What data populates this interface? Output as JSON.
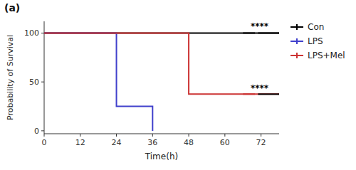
{
  "chart_data": {
    "type": "line",
    "title": "(a)",
    "x_label": "Time(h)",
    "y_label": "Probability of Survival",
    "xlim": [
      0,
      78
    ],
    "ylim": [
      -3,
      112
    ],
    "xticks": [
      0,
      12,
      24,
      36,
      48,
      60,
      72
    ],
    "yticks": [
      0,
      50,
      100
    ],
    "grid": false,
    "legend": "right",
    "series": [
      {
        "name": "Con",
        "color": "#000000",
        "x": [
          0,
          78
        ],
        "values": [
          100,
          100
        ]
      },
      {
        "name": "LPS",
        "color": "#4040cc",
        "x": [
          0,
          24,
          24,
          36,
          36
        ],
        "values": [
          100,
          100,
          25,
          25,
          0
        ]
      },
      {
        "name": "LPS+Mel",
        "color": "#cc3333",
        "x": [
          0,
          48,
          48,
          78
        ],
        "values": [
          100,
          100,
          37.5,
          37.5
        ]
      }
    ],
    "brackets": [
      {
        "x": [
          66,
          70
        ],
        "y": 100,
        "color": "#000000"
      },
      {
        "x": [
          71,
          78
        ],
        "y": 100,
        "color": "#000000"
      },
      {
        "x": [
          66,
          70
        ],
        "y": 37.5,
        "color": "#cc3333"
      },
      {
        "x": [
          71,
          78
        ],
        "y": 37.5,
        "color": "#000000"
      }
    ],
    "annotations": [
      {
        "text": "****",
        "x": 71.5,
        "y": 104
      },
      {
        "text": "****",
        "x": 71.5,
        "y": 41
      }
    ]
  }
}
